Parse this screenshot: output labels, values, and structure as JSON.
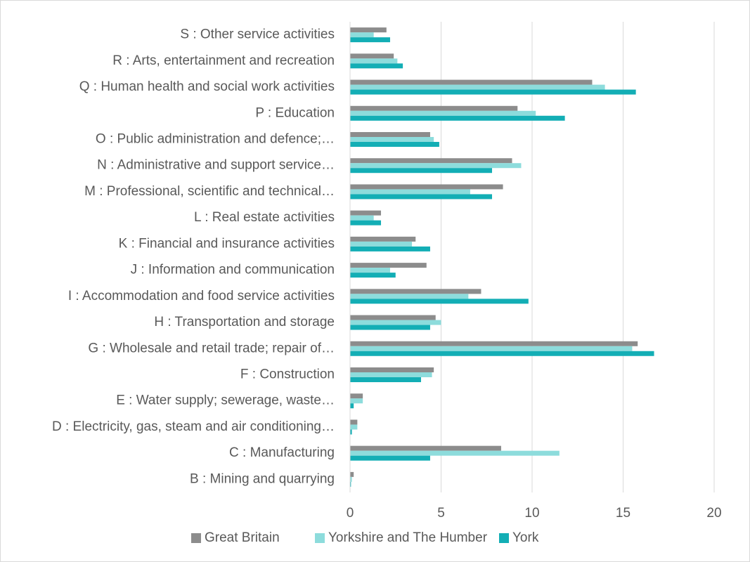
{
  "chart_data": {
    "type": "barh",
    "categories": [
      "S : Other service activities",
      "R : Arts, entertainment and recreation",
      "Q : Human health and social work activities",
      "P : Education",
      "O : Public administration and defence;…",
      "N : Administrative and support service…",
      "M : Professional, scientific and technical…",
      "L : Real estate activities",
      "K : Financial and insurance activities",
      "J : Information and communication",
      "I : Accommodation and food service activities",
      "H : Transportation and storage",
      "G : Wholesale and retail trade; repair of…",
      "F : Construction",
      "E : Water supply; sewerage, waste…",
      "D : Electricity, gas, steam and air conditioning…",
      "C : Manufacturing",
      "B : Mining and quarrying"
    ],
    "series": [
      {
        "name": "Great Britain",
        "color": "#8c8c8c",
        "values": [
          2.0,
          2.4,
          13.3,
          9.2,
          4.4,
          8.9,
          8.4,
          1.7,
          3.6,
          4.2,
          7.2,
          4.7,
          15.8,
          4.6,
          0.7,
          0.4,
          8.3,
          0.2
        ]
      },
      {
        "name": "Yorkshire and The Humber",
        "color": "#8ddcdc",
        "values": [
          1.3,
          2.6,
          14.0,
          10.2,
          4.6,
          9.4,
          6.6,
          1.3,
          3.4,
          2.2,
          6.5,
          5.0,
          15.5,
          4.5,
          0.7,
          0.4,
          11.5,
          0.1
        ]
      },
      {
        "name": "York",
        "color": "#13aeb5",
        "values": [
          2.2,
          2.9,
          15.7,
          11.8,
          4.9,
          7.8,
          7.8,
          1.7,
          4.4,
          2.5,
          9.8,
          4.4,
          16.7,
          3.9,
          0.2,
          0.1,
          4.4,
          0.05
        ]
      }
    ],
    "xlim": [
      0,
      20
    ],
    "xticks": [
      0,
      5,
      10,
      15,
      20
    ],
    "grid": true,
    "legend": "bottom"
  }
}
